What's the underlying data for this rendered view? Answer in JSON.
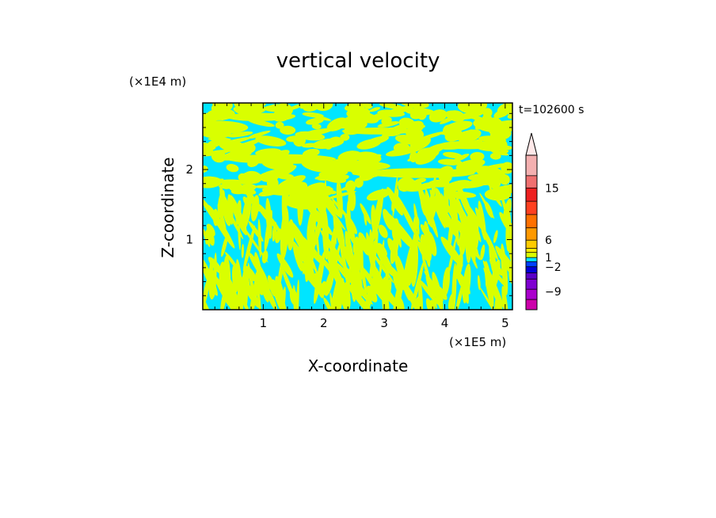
{
  "chart_data": {
    "type": "heatmap",
    "title": "vertical velocity",
    "xlabel": "X-coordinate",
    "ylabel": "Z-coordinate",
    "x_unit_label": "(×1E5 m)",
    "y_unit_label": "(×1E4 m)",
    "time_label": "t=102600 s",
    "x_ticks": [
      "1",
      "2",
      "3",
      "4",
      "5"
    ],
    "y_ticks": [
      "1",
      "2"
    ],
    "xlim": [
      0,
      5.12
    ],
    "ylim": [
      0,
      2.95
    ],
    "colorbar": {
      "tick_labels": [
        "15",
        "6",
        "1",
        "−2",
        "−9"
      ],
      "levels": [
        {
          "color": "#cc00aa"
        },
        {
          "color": "#aa00cc"
        },
        {
          "color": "#7f00d0"
        },
        {
          "color": "#5a00c8"
        },
        {
          "color": "#0000d8"
        },
        {
          "color": "#0040ff"
        },
        {
          "color": "#00e5ff"
        },
        {
          "color": "#d9ff00"
        },
        {
          "color": "#ffee00"
        },
        {
          "color": "#ffcc00"
        },
        {
          "color": "#ff9900"
        },
        {
          "color": "#ff7000"
        },
        {
          "color": "#ff4020"
        },
        {
          "color": "#ee2020"
        },
        {
          "color": "#f07070"
        },
        {
          "color": "#f4b0b0"
        }
      ],
      "extend_top_color": "#ffe8e8"
    },
    "field_colors": {
      "negative": "#00e5ff",
      "positive": "#d9ff00"
    }
  }
}
